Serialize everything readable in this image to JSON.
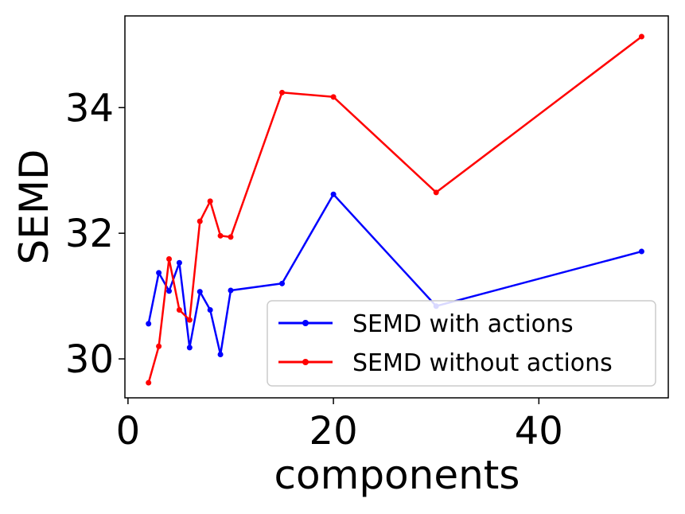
{
  "chart_data": {
    "type": "line",
    "title": "",
    "xlabel": "components",
    "ylabel": "SEMD",
    "xlim": [
      -0.3,
      52.6
    ],
    "ylim": [
      29.38,
      35.46
    ],
    "xticks": [
      0,
      20,
      40
    ],
    "yticks": [
      30,
      32,
      34
    ],
    "grid": false,
    "legend_position": "lower-right",
    "x": [
      2,
      3,
      4,
      5,
      6,
      7,
      8,
      9,
      10,
      15,
      20,
      30,
      50
    ],
    "series": [
      {
        "name": "SEMD with actions",
        "color": "#0000ff",
        "marker": "circle",
        "values": [
          30.56,
          31.37,
          31.08,
          31.53,
          30.18,
          31.07,
          30.78,
          30.07,
          31.09,
          31.2,
          32.62,
          30.84,
          31.71
        ]
      },
      {
        "name": "SEMD without actions",
        "color": "#ff0000",
        "marker": "circle",
        "values": [
          29.62,
          30.2,
          31.59,
          30.78,
          30.62,
          32.19,
          32.51,
          31.96,
          31.94,
          34.24,
          34.17,
          32.65,
          35.13
        ]
      }
    ]
  }
}
